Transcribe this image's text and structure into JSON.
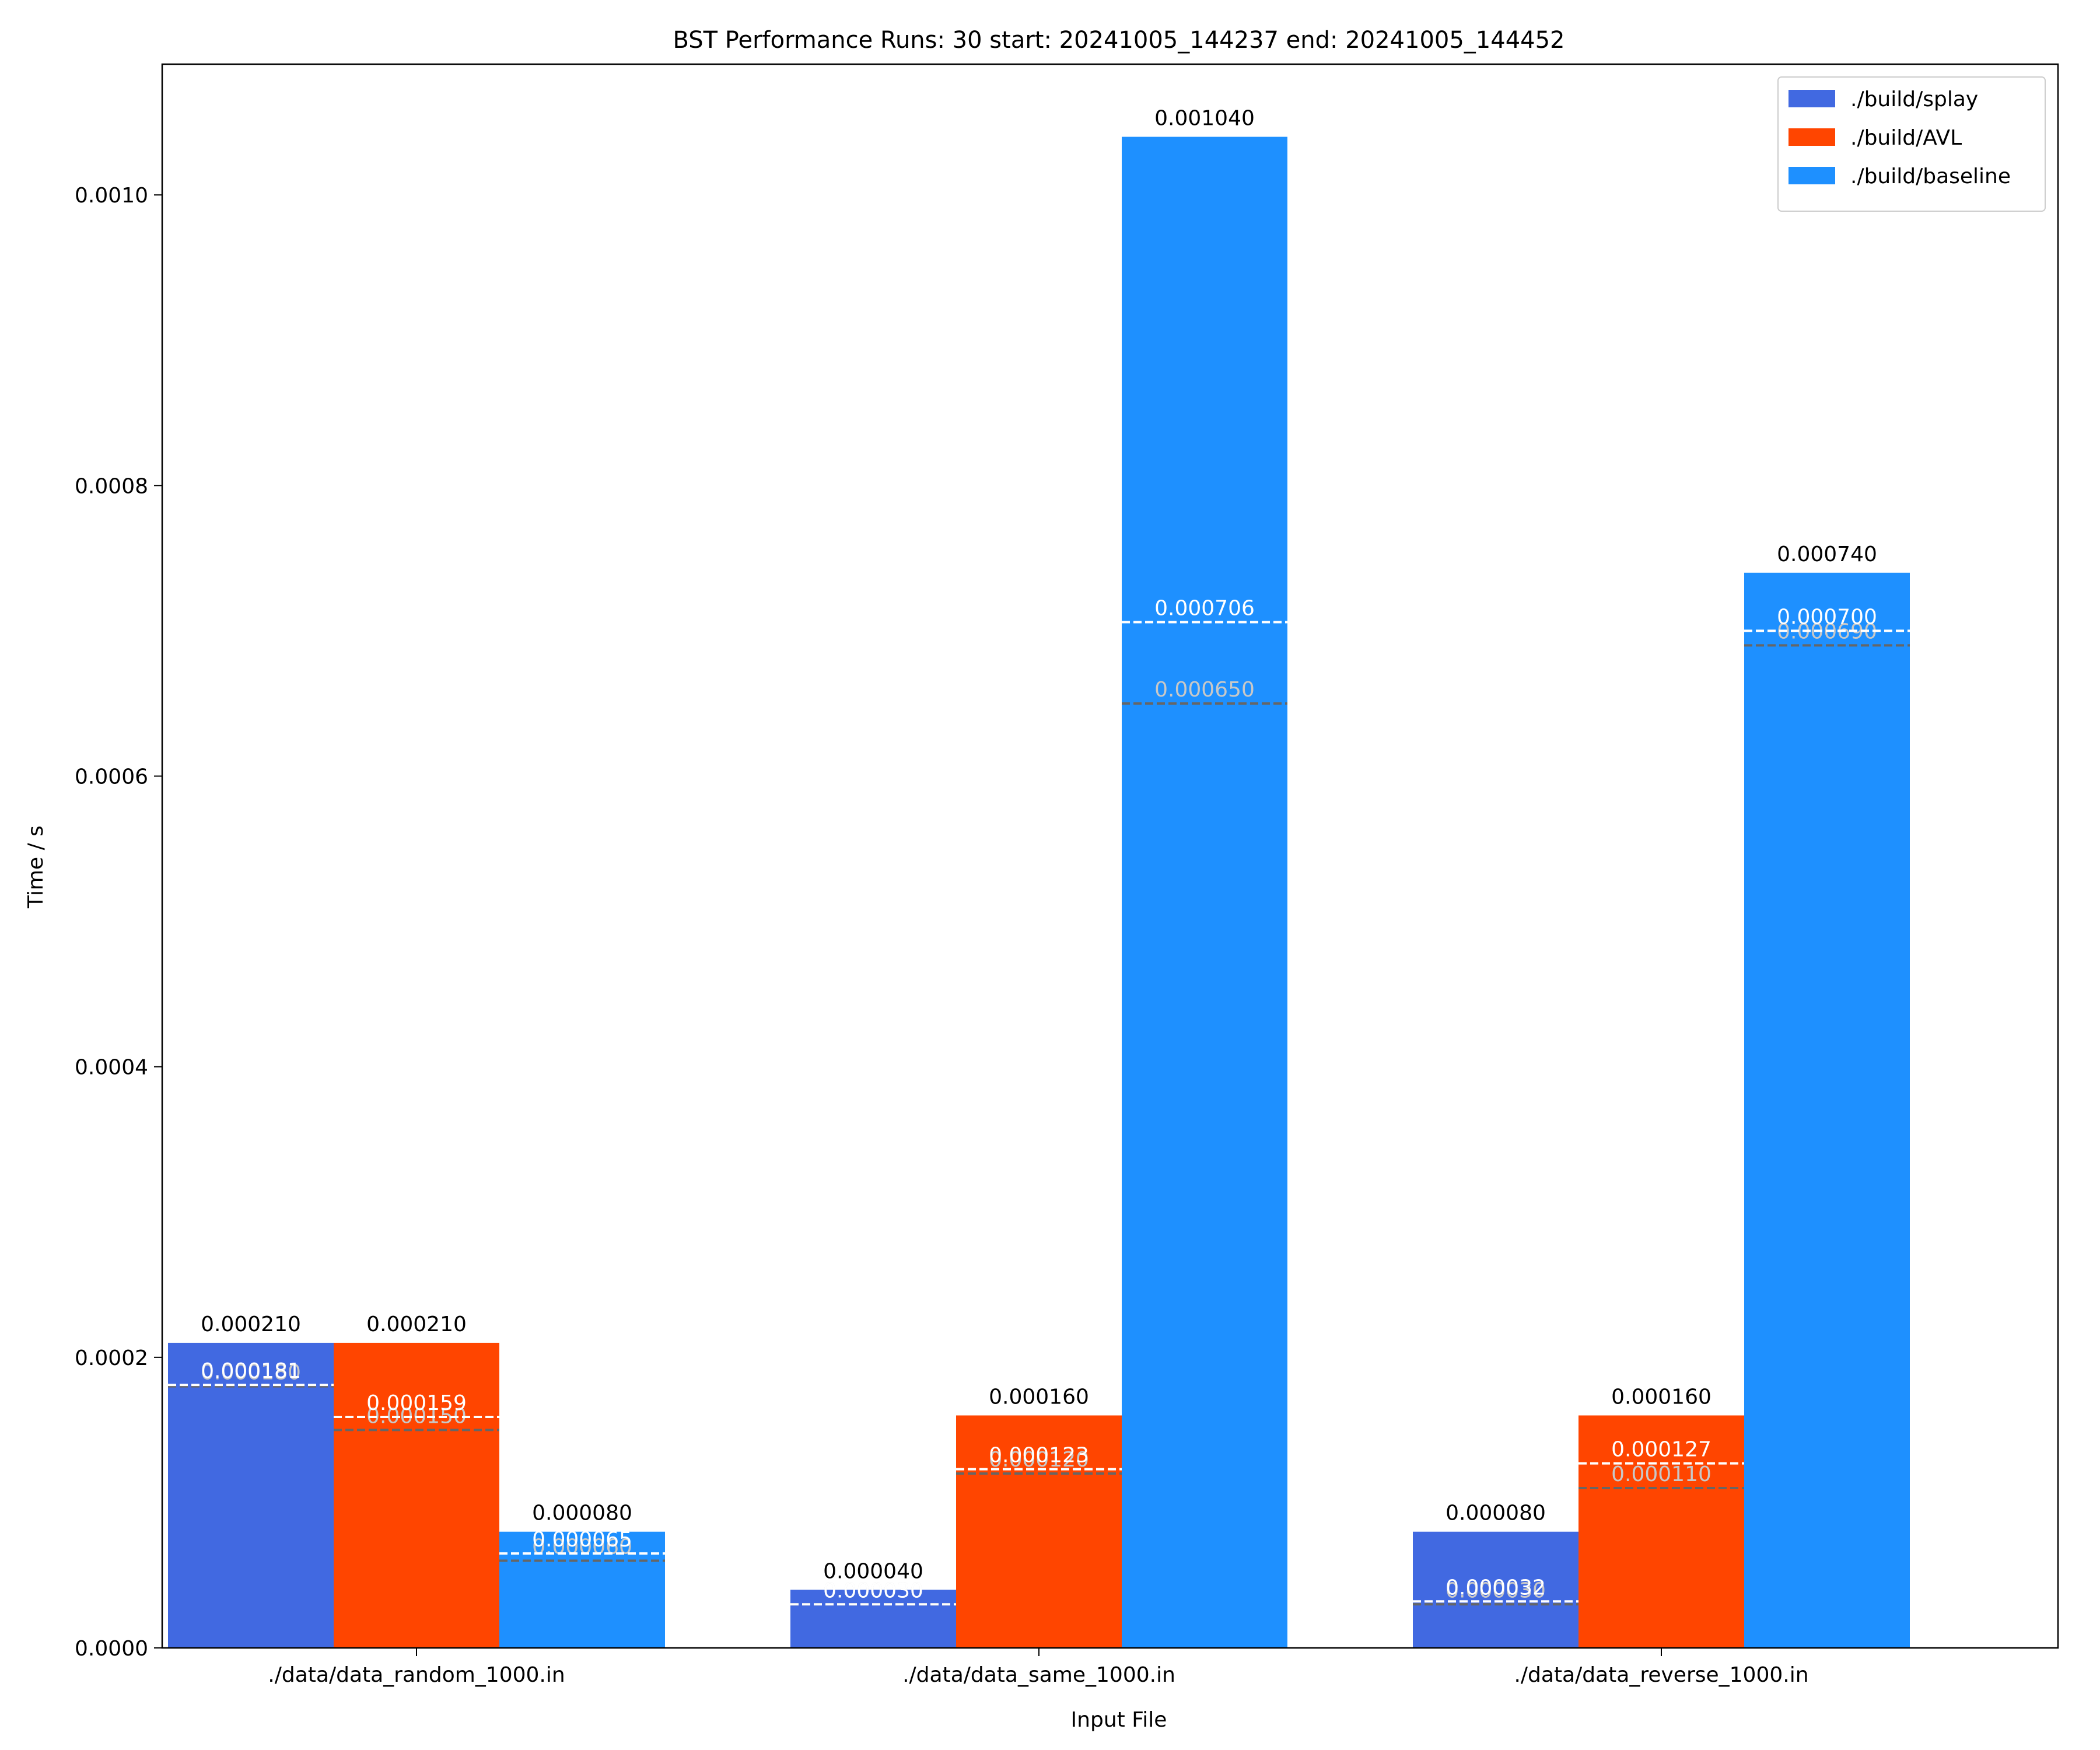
{
  "chart_data": {
    "type": "bar",
    "title": "BST Performance Runs: 30 start: 20241005_144237 end: 20241005_144452",
    "xlabel": "Input File",
    "ylabel": "Time / s",
    "ylim": [
      0,
      0.00109
    ],
    "yticks": [
      {
        "value": 0,
        "label": "0.0000"
      },
      {
        "value": 0.0002,
        "label": "0.0002"
      },
      {
        "value": 0.0004,
        "label": "0.0004"
      },
      {
        "value": 0.0006,
        "label": "0.0006"
      },
      {
        "value": 0.0008,
        "label": "0.0008"
      },
      {
        "value": 0.001,
        "label": "0.0010"
      }
    ],
    "categories": [
      "./data/data_random_1000.in",
      "./data/data_same_1000.in",
      "./data/data_reverse_1000.in"
    ],
    "legend_position": "top-right",
    "series": [
      {
        "name": "./build/splay",
        "color": "#4169E1",
        "values": [
          0.00021,
          4e-05,
          8e-05
        ],
        "value_labels": [
          "0.000210",
          "0.000040",
          "0.000080"
        ],
        "means": [
          0.000181,
          3e-05,
          3.2e-05
        ],
        "mean_labels": [
          "0.000181",
          "0.000030",
          "0.000032"
        ],
        "medians": [
          0.00018,
          3e-05,
          3e-05
        ],
        "median_labels": [
          "0.000180",
          "0.000030",
          "0.000030"
        ]
      },
      {
        "name": "./build/AVL",
        "color": "#FF4500",
        "values": [
          0.00021,
          0.00016,
          0.00016
        ],
        "value_labels": [
          "0.000210",
          "0.000160",
          "0.000160"
        ],
        "means": [
          0.000159,
          0.000123,
          0.000127
        ],
        "mean_labels": [
          "0.000159",
          "0.000123",
          "0.000127"
        ],
        "medians": [
          0.00015,
          0.00012,
          0.00011
        ],
        "median_labels": [
          "0.000150",
          "0.000120",
          "0.000110"
        ]
      },
      {
        "name": "./build/baseline",
        "color": "#1E90FF",
        "values": [
          8e-05,
          0.00104,
          0.00074
        ],
        "value_labels": [
          "0.000080",
          "0.001040",
          "0.000740"
        ],
        "means": [
          6.5e-05,
          0.000706,
          0.0007
        ],
        "mean_labels": [
          "0.000065",
          "0.000706",
          "0.000700"
        ],
        "medians": [
          6e-05,
          0.00065,
          0.00069
        ],
        "median_labels": [
          "0.000060",
          "0.000650",
          "0.000690"
        ]
      }
    ]
  }
}
